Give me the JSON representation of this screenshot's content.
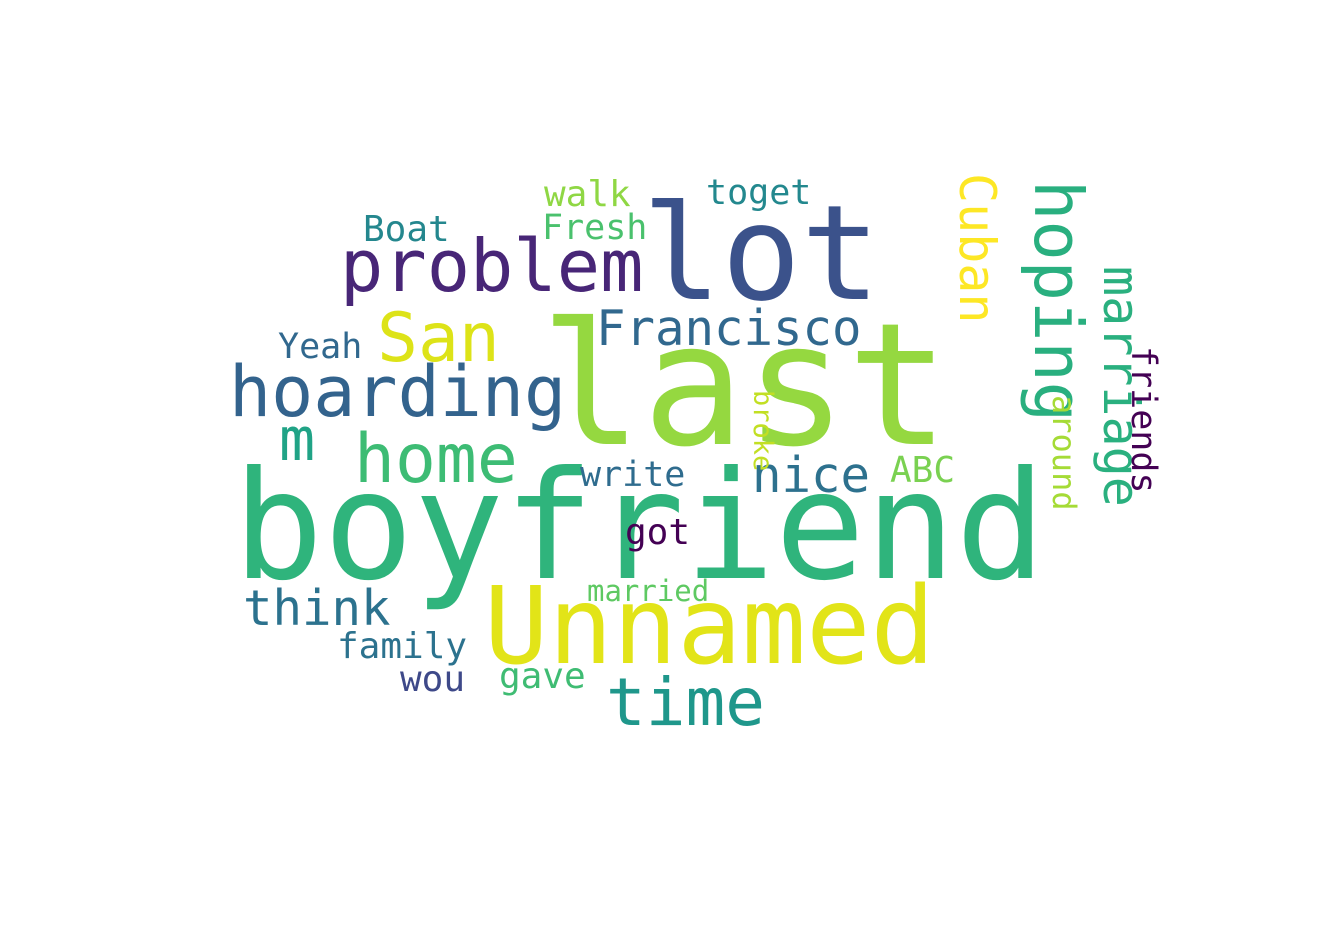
{
  "words": [
    {
      "text": "last",
      "color": "#95d840"
    },
    {
      "text": "boyfriend",
      "color": "#2fb47c"
    },
    {
      "text": "lot",
      "color": "#3b528b"
    },
    {
      "text": "Unnamed",
      "color": "#e2e418"
    },
    {
      "text": "problem",
      "color": "#482677"
    },
    {
      "text": "hoarding",
      "color": "#33638d"
    },
    {
      "text": "San",
      "color": "#dde318"
    },
    {
      "text": "Francisco",
      "color": "#31688e"
    },
    {
      "text": "hoping",
      "color": "#29af7f"
    },
    {
      "text": "Cuban",
      "color": "#fde725"
    },
    {
      "text": "home",
      "color": "#3dbc74"
    },
    {
      "text": "time",
      "color": "#1f978b"
    },
    {
      "text": "marriage",
      "color": "#2ab07f"
    },
    {
      "text": "nice",
      "color": "#2d718e"
    },
    {
      "text": "think",
      "color": "#2c728e"
    },
    {
      "text": "m",
      "color": "#20a386"
    },
    {
      "text": "friends",
      "color": "#440154"
    },
    {
      "text": "walk",
      "color": "#8fd744"
    },
    {
      "text": "toget",
      "color": "#23888e"
    },
    {
      "text": "Fresh",
      "color": "#4ac16d"
    },
    {
      "text": "Boat",
      "color": "#24878e"
    },
    {
      "text": "Yeah",
      "color": "#31688e"
    },
    {
      "text": "write",
      "color": "#2f6c8e"
    },
    {
      "text": "ABC",
      "color": "#7ad151"
    },
    {
      "text": "around",
      "color": "#a5db36"
    },
    {
      "text": "broke",
      "color": "#c2df23"
    },
    {
      "text": "got",
      "color": "#440154"
    },
    {
      "text": "married",
      "color": "#5ec962"
    },
    {
      "text": "family",
      "color": "#2c728e"
    },
    {
      "text": "wou",
      "color": "#3e4989"
    },
    {
      "text": "gave",
      "color": "#3fbc73"
    }
  ]
}
